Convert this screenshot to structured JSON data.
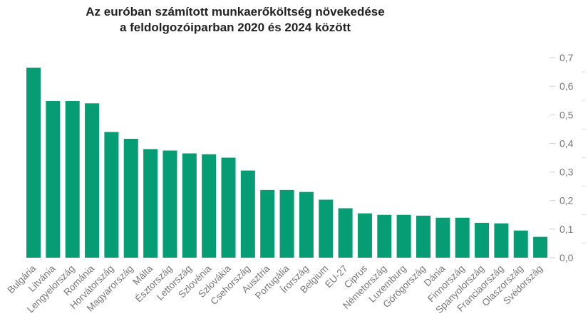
{
  "chart_data": {
    "type": "bar",
    "title_lines": [
      "Az euróban számított munkaerőköltség növekedése",
      "a feldolgozóiparban 2020 és 2024 között"
    ],
    "xlabel": "",
    "ylabel": "",
    "ylim": [
      0,
      0.7
    ],
    "yticks": [
      0.0,
      0.1,
      0.2,
      0.3,
      0.4,
      0.5,
      0.6,
      0.7
    ],
    "ytick_labels": [
      "0,0",
      "0,1",
      "0,2",
      "0,3",
      "0,4",
      "0,5",
      "0,6",
      "0,7"
    ],
    "y_axis_position": "right",
    "grid": false,
    "bar_color": "#079d74",
    "categories": [
      "Bulgária",
      "Litvánia",
      "Lengyelország",
      "Románia",
      "Horvátország",
      "Magyarország",
      "Málta",
      "Észtország",
      "Lettország",
      "Szlovénia",
      "Szlovákia",
      "Csehország",
      "Ausztria",
      "Portugália",
      "Írország",
      "Belgium",
      "EU-27",
      "Ciprus",
      "Németország",
      "Luxemburg",
      "Görögország",
      "Dánia",
      "Finnország",
      "Spanyolország",
      "Franciaország",
      "Olaszország",
      "Svédország"
    ],
    "values": [
      0.665,
      0.548,
      0.548,
      0.54,
      0.44,
      0.416,
      0.38,
      0.375,
      0.365,
      0.362,
      0.35,
      0.305,
      0.237,
      0.237,
      0.23,
      0.203,
      0.173,
      0.155,
      0.15,
      0.15,
      0.147,
      0.14,
      0.14,
      0.122,
      0.12,
      0.095,
      0.073
    ]
  }
}
